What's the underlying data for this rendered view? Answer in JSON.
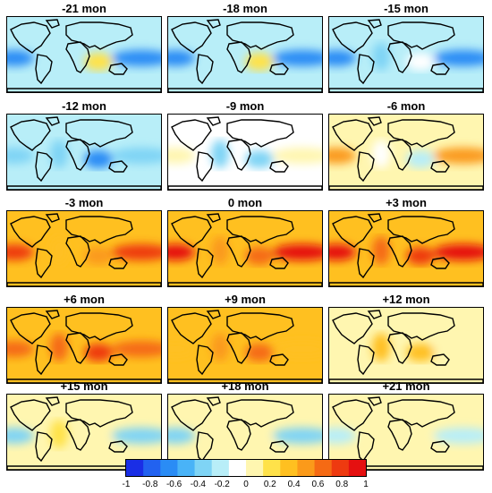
{
  "chart_data": {
    "type": "heatmap",
    "description_type": "lagged global correlation maps",
    "panels": [
      {
        "label": "-21 mon",
        "tropical_pacific": -0.6,
        "indian_ocean": 0.2,
        "atlantic": -0.2,
        "land": -0.2
      },
      {
        "label": "-18 mon",
        "tropical_pacific": -0.7,
        "indian_ocean": 0.2,
        "atlantic": -0.2,
        "land": -0.2
      },
      {
        "label": "-15 mon",
        "tropical_pacific": -0.6,
        "indian_ocean": -0.1,
        "atlantic": -0.3,
        "land": -0.2
      },
      {
        "label": "-12 mon",
        "tropical_pacific": -0.3,
        "indian_ocean": -0.6,
        "atlantic": -0.4,
        "land": -0.2
      },
      {
        "label": "-9 mon",
        "tropical_pacific": 0.1,
        "indian_ocean": -0.4,
        "atlantic": -0.3,
        "land": -0.1
      },
      {
        "label": "-6 mon",
        "tropical_pacific": 0.5,
        "indian_ocean": -0.2,
        "atlantic": -0.1,
        "land": 0.0
      },
      {
        "label": "-3 mon",
        "tropical_pacific": 0.8,
        "indian_ocean": 0.5,
        "atlantic": 0.4,
        "land": 0.3
      },
      {
        "label": "0 mon",
        "tropical_pacific": 0.9,
        "indian_ocean": 0.6,
        "atlantic": 0.5,
        "land": 0.3
      },
      {
        "label": "+3 mon",
        "tropical_pacific": 0.9,
        "indian_ocean": 0.8,
        "atlantic": 0.6,
        "land": 0.4
      },
      {
        "label": "+6 mon",
        "tropical_pacific": 0.6,
        "indian_ocean": 0.8,
        "atlantic": 0.7,
        "land": 0.3
      },
      {
        "label": "+9 mon",
        "tropical_pacific": 0.3,
        "indian_ocean": 0.6,
        "atlantic": 0.5,
        "land": 0.3
      },
      {
        "label": "+12 mon",
        "tropical_pacific": 0.0,
        "indian_ocean": 0.3,
        "atlantic": 0.3,
        "land": 0.1
      },
      {
        "label": "+15 mon",
        "tropical_pacific": -0.4,
        "indian_ocean": 0.1,
        "atlantic": 0.2,
        "land": 0.0
      },
      {
        "label": "+18 mon",
        "tropical_pacific": -0.3,
        "indian_ocean": 0.1,
        "atlantic": 0.1,
        "land": 0.0
      },
      {
        "label": "+21 mon",
        "tropical_pacific": -0.2,
        "indian_ocean": 0.1,
        "atlantic": 0.0,
        "land": 0.0
      }
    ],
    "colorbar": {
      "range": [
        -1,
        1
      ],
      "ticks": [
        "-1",
        "-0.8",
        "-0.6",
        "-0.4",
        "-0.2",
        "0",
        "0.2",
        "0.4",
        "0.6",
        "0.8",
        "1"
      ],
      "colors": [
        "#1a2ee6",
        "#2262f0",
        "#2a8cf5",
        "#49b3f7",
        "#7fd4f5",
        "#b8eef8",
        "#ffffff",
        "#fff6b0",
        "#ffe24a",
        "#ffc020",
        "#fb9a1a",
        "#f56a14",
        "#ee3a10",
        "#e51010"
      ]
    }
  }
}
